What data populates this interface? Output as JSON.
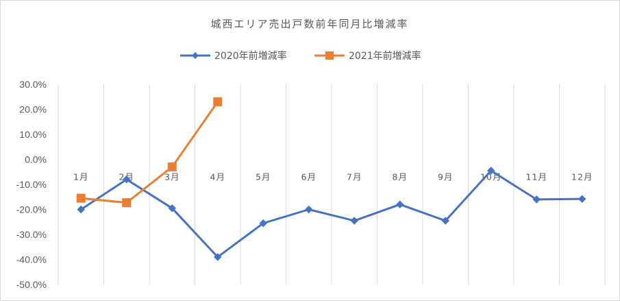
{
  "chart_data": {
    "type": "line",
    "title": "城西エリア売出戸数前年同月比増減率",
    "categories": [
      "1月",
      "2月",
      "3月",
      "4月",
      "5月",
      "6月",
      "7月",
      "8月",
      "9月",
      "10月",
      "11月",
      "12月"
    ],
    "y_ticks": [
      "30.0%",
      "20.0%",
      "10.0%",
      "0.0%",
      "-10.0%",
      "-20.0%",
      "-30.0%",
      "-40.0%",
      "-50.0%"
    ],
    "ylim": [
      -50,
      30
    ],
    "y_unit": "percent",
    "grid": "vertical",
    "legend_position": "top",
    "series": [
      {
        "name": "2020年前増減率",
        "color": "#4472C4",
        "marker": "diamond",
        "values": [
          -20.0,
          -8.0,
          -19.5,
          -39.0,
          -25.5,
          -20.0,
          -24.5,
          -18.0,
          -24.5,
          -4.5,
          -16.0,
          -15.8
        ]
      },
      {
        "name": "2021年前増減率",
        "color": "#ED7D31",
        "marker": "square",
        "values": [
          -15.5,
          -17.3,
          -3.0,
          23.0,
          null,
          null,
          null,
          null,
          null,
          null,
          null,
          null
        ]
      }
    ]
  }
}
